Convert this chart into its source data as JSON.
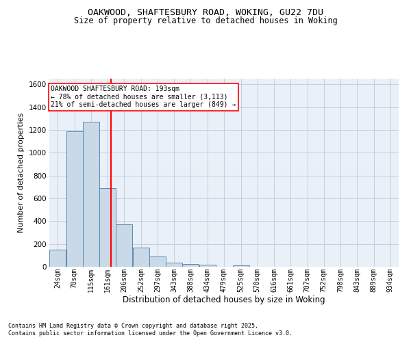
{
  "title_line1": "OAKWOOD, SHAFTESBURY ROAD, WOKING, GU22 7DU",
  "title_line2": "Size of property relative to detached houses in Woking",
  "xlabel": "Distribution of detached houses by size in Woking",
  "ylabel": "Number of detached properties",
  "bin_labels": [
    "24sqm",
    "70sqm",
    "115sqm",
    "161sqm",
    "206sqm",
    "252sqm",
    "297sqm",
    "343sqm",
    "388sqm",
    "434sqm",
    "479sqm",
    "525sqm",
    "570sqm",
    "616sqm",
    "661sqm",
    "707sqm",
    "752sqm",
    "798sqm",
    "843sqm",
    "889sqm",
    "934sqm"
  ],
  "bin_edges": [
    24,
    70,
    115,
    161,
    206,
    252,
    297,
    343,
    388,
    434,
    479,
    525,
    570,
    616,
    661,
    707,
    752,
    798,
    843,
    889,
    934
  ],
  "bar_heights": [
    150,
    1190,
    1270,
    690,
    375,
    170,
    90,
    35,
    25,
    20,
    0,
    15,
    0,
    0,
    0,
    0,
    0,
    0,
    0,
    0
  ],
  "bar_color": "#c9d9e8",
  "bar_edge_color": "#5a8ab0",
  "grid_color": "#c0cfe0",
  "bg_color": "#eaf0f8",
  "fig_color": "#ffffff",
  "red_line_x": 193,
  "ylim": [
    0,
    1650
  ],
  "yticks": [
    0,
    200,
    400,
    600,
    800,
    1000,
    1200,
    1400,
    1600
  ],
  "annotation_title": "OAKWOOD SHAFTESBURY ROAD: 193sqm",
  "annotation_line1": "← 78% of detached houses are smaller (3,113)",
  "annotation_line2": "21% of semi-detached houses are larger (849) →",
  "footer_line1": "Contains HM Land Registry data © Crown copyright and database right 2025.",
  "footer_line2": "Contains public sector information licensed under the Open Government Licence v3.0."
}
